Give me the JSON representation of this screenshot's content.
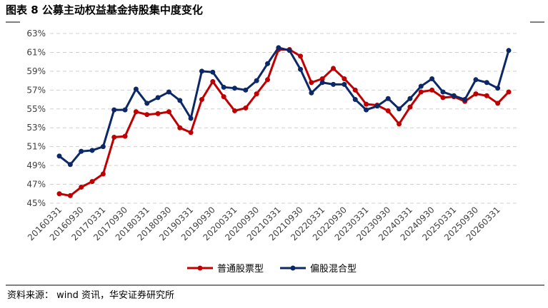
{
  "chart_data": {
    "type": "line",
    "title": "图表 8 公募主动权益基金持股集中度变化",
    "categories": [
      "20160331",
      null,
      "20160930",
      null,
      "20170331",
      null,
      "20170930",
      null,
      "20180331",
      null,
      "20180930",
      null,
      "20190331",
      null,
      "20190930",
      null,
      "20200331",
      null,
      "20200930",
      null,
      "20210331",
      null,
      "20210930",
      null,
      "20220331",
      null,
      "20220930",
      null,
      "20230331",
      null,
      "20230930",
      null,
      "20240331",
      null,
      "20240930",
      null,
      "20250331",
      null,
      "20250930",
      null,
      "20260331",
      null
    ],
    "series": [
      {
        "name": "普通股票型",
        "color": "#c00000",
        "values": [
          46.0,
          45.8,
          46.7,
          47.3,
          48.1,
          52.0,
          52.1,
          54.7,
          54.4,
          54.5,
          54.7,
          53.0,
          52.5,
          56.0,
          57.9,
          56.3,
          54.8,
          55.1,
          56.6,
          58.1,
          61.3,
          61.3,
          60.6,
          57.8,
          58.2,
          59.3,
          58.2,
          57.0,
          55.5,
          55.4,
          54.8,
          53.4,
          55.2,
          56.8,
          57.0,
          56.2,
          56.3,
          55.8,
          56.6,
          56.4,
          55.6,
          56.8
        ]
      },
      {
        "name": "偏股混合型",
        "color": "#0c2866",
        "values": [
          50.0,
          49.1,
          50.5,
          50.6,
          51.0,
          54.9,
          54.9,
          57.1,
          55.6,
          56.2,
          56.8,
          55.9,
          54.0,
          59.0,
          58.9,
          57.3,
          57.2,
          57.0,
          58.0,
          59.8,
          61.5,
          61.2,
          59.2,
          56.7,
          57.8,
          57.6,
          57.6,
          56.0,
          54.9,
          55.3,
          56.1,
          55.0,
          56.1,
          57.4,
          58.2,
          56.8,
          56.4,
          56.0,
          58.1,
          57.8,
          57.2,
          61.2
        ]
      }
    ],
    "ylim": [
      45,
      63
    ],
    "yticks": [
      {
        "value": 45,
        "label": "45%"
      },
      {
        "value": 47,
        "label": "47%"
      },
      {
        "value": 49,
        "label": "49%"
      },
      {
        "value": 51,
        "label": "51%"
      },
      {
        "value": 53,
        "label": "53%"
      },
      {
        "value": 55,
        "label": "55%"
      },
      {
        "value": 57,
        "label": "57%"
      },
      {
        "value": 59,
        "label": "59%"
      },
      {
        "value": 61,
        "label": "61%"
      },
      {
        "value": 63,
        "label": "63%"
      }
    ],
    "grid": true,
    "legend": "bottom",
    "source": "资料来源： wind 资讯，华安证券研究所"
  }
}
